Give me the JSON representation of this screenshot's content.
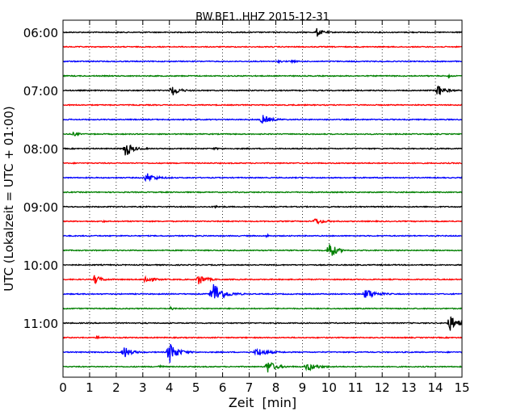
{
  "chart_data": {
    "type": "line",
    "title": "BW.BE1..HHZ 2015-12-31",
    "xlabel": "Zeit  [min]",
    "ylabel": "UTC (Lokalzeit = UTC + 01:00)",
    "xlim": [
      0,
      15
    ],
    "x_ticks": [
      "0",
      "1",
      "2",
      "3",
      "4",
      "5",
      "6",
      "7",
      "8",
      "9",
      "10",
      "11",
      "12",
      "13",
      "14",
      "15"
    ],
    "vertical_grid": "dotted",
    "traces_per_hour": 4,
    "trace_minutes": 15,
    "y_ticks": [
      "06:00",
      "07:00",
      "08:00",
      "09:00",
      "10:00",
      "11:00"
    ],
    "series_colors": [
      "#000000",
      "#ff0000",
      "#0000ff",
      "#008000"
    ],
    "series": [
      {
        "start": "06:00",
        "events": [
          {
            "t": 9.55,
            "amp": 0.55,
            "dur": 0.25
          }
        ]
      },
      {
        "start": "06:15",
        "events": []
      },
      {
        "start": "06:30",
        "events": [
          {
            "t": 8.6,
            "amp": 0.2,
            "dur": 0.15
          },
          {
            "t": 8.1,
            "amp": 0.1,
            "dur": 0.2
          }
        ]
      },
      {
        "start": "06:45",
        "events": [
          {
            "t": 14.5,
            "amp": 0.25,
            "dur": 0.1
          }
        ]
      },
      {
        "start": "07:00",
        "events": [
          {
            "t": 4.1,
            "amp": 0.7,
            "dur": 0.35
          },
          {
            "t": 14.1,
            "amp": 0.75,
            "dur": 0.35
          }
        ]
      },
      {
        "start": "07:15",
        "events": []
      },
      {
        "start": "07:30",
        "events": [
          {
            "t": 7.5,
            "amp": 0.55,
            "dur": 0.4
          }
        ]
      },
      {
        "start": "07:45",
        "events": [
          {
            "t": 0.4,
            "amp": 0.25,
            "dur": 0.2
          }
        ]
      },
      {
        "start": "08:00",
        "events": [
          {
            "t": 2.35,
            "amp": 1.0,
            "dur": 0.35
          },
          {
            "t": 5.7,
            "amp": 0.1,
            "dur": 0.2
          }
        ]
      },
      {
        "start": "08:15",
        "events": []
      },
      {
        "start": "08:30",
        "events": [
          {
            "t": 3.15,
            "amp": 0.55,
            "dur": 0.45
          }
        ]
      },
      {
        "start": "08:45",
        "events": []
      },
      {
        "start": "09:00",
        "events": [
          {
            "t": 5.7,
            "amp": 0.1,
            "dur": 0.3
          }
        ]
      },
      {
        "start": "09:15",
        "events": [
          {
            "t": 9.5,
            "amp": 0.4,
            "dur": 0.4
          },
          {
            "t": 1.5,
            "amp": 0.1,
            "dur": 0.1
          }
        ]
      },
      {
        "start": "09:30",
        "events": [
          {
            "t": 7.65,
            "amp": 0.25,
            "dur": 0.1
          }
        ]
      },
      {
        "start": "09:45",
        "events": [
          {
            "t": 10.0,
            "amp": 1.4,
            "dur": 0.3
          }
        ]
      },
      {
        "start": "10:00",
        "events": []
      },
      {
        "start": "10:15",
        "events": [
          {
            "t": 1.2,
            "amp": 0.6,
            "dur": 0.3
          },
          {
            "t": 3.1,
            "amp": 0.5,
            "dur": 0.35
          },
          {
            "t": 5.1,
            "amp": 0.7,
            "dur": 0.35
          }
        ]
      },
      {
        "start": "10:30",
        "events": [
          {
            "t": 5.65,
            "amp": 1.5,
            "dur": 0.5
          },
          {
            "t": 11.4,
            "amp": 0.7,
            "dur": 0.45
          }
        ]
      },
      {
        "start": "10:45",
        "events": [
          {
            "t": 4.05,
            "amp": 0.25,
            "dur": 0.1
          }
        ]
      },
      {
        "start": "11:00",
        "events": [
          {
            "t": 14.55,
            "amp": 1.0,
            "dur": 0.4
          }
        ]
      },
      {
        "start": "11:15",
        "events": [
          {
            "t": 1.3,
            "amp": 0.15,
            "dur": 0.25
          }
        ]
      },
      {
        "start": "11:30",
        "events": [
          {
            "t": 2.3,
            "amp": 0.75,
            "dur": 0.35
          },
          {
            "t": 4.0,
            "amp": 1.4,
            "dur": 0.4
          },
          {
            "t": 7.3,
            "amp": 0.5,
            "dur": 0.5
          }
        ]
      },
      {
        "start": "11:45",
        "events": [
          {
            "t": 7.7,
            "amp": 0.8,
            "dur": 0.4
          },
          {
            "t": 9.2,
            "amp": 0.5,
            "dur": 0.5
          },
          {
            "t": 3.6,
            "amp": 0.15,
            "dur": 0.2
          }
        ]
      }
    ]
  }
}
